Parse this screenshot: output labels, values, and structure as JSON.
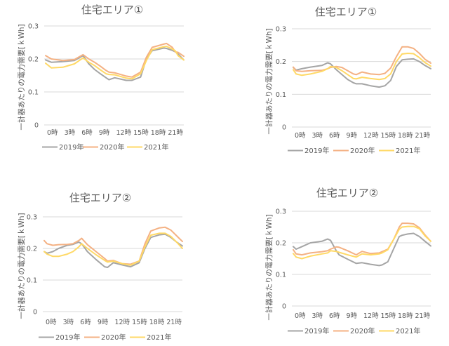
{
  "chart_data": [
    {
      "type": "line",
      "title": "住宅エリア①",
      "xlabel": "",
      "ylabel": "一計器あたりの電力需要[ｋWh]",
      "ylim": [
        0,
        0.3
      ],
      "yticks": [
        "0",
        "0.1",
        "0.2",
        "0.3"
      ],
      "xlim": [
        0,
        24
      ],
      "xticks": [
        "0時",
        "3時",
        "6時",
        "9時",
        "12時",
        "15時",
        "18時",
        "21時"
      ],
      "grid": true,
      "legend_position": "bottom",
      "x": [
        0,
        1,
        3,
        5,
        6.5,
        7.5,
        8.5,
        9.5,
        10.5,
        11,
        12,
        14,
        15,
        16.5,
        17.5,
        18.5,
        20.5,
        21,
        22,
        22.5,
        23,
        24
      ],
      "series": [
        {
          "name": "2019年",
          "color": "#a5a5a5",
          "values": [
            0.197,
            0.19,
            0.192,
            0.195,
            0.21,
            0.185,
            0.168,
            0.155,
            0.143,
            0.137,
            0.143,
            0.135,
            0.135,
            0.145,
            0.2,
            0.225,
            0.233,
            0.232,
            0.226,
            0.222,
            0.215,
            0.197
          ]
        },
        {
          "name": "2020年",
          "color": "#f4b183",
          "values": [
            0.21,
            0.2,
            0.195,
            0.198,
            0.213,
            0.2,
            0.19,
            0.178,
            0.165,
            0.16,
            0.158,
            0.148,
            0.145,
            0.16,
            0.205,
            0.235,
            0.245,
            0.247,
            0.235,
            0.222,
            0.22,
            0.208
          ]
        },
        {
          "name": "2021年",
          "color": "#ffd966",
          "values": [
            0.187,
            0.173,
            0.175,
            0.185,
            0.203,
            0.19,
            0.18,
            0.167,
            0.155,
            0.153,
            0.152,
            0.142,
            0.14,
            0.155,
            0.195,
            0.228,
            0.237,
            0.238,
            0.23,
            0.225,
            0.21,
            0.197
          ]
        }
      ]
    },
    {
      "type": "line",
      "title": "住宅エリア①",
      "xlabel": "",
      "ylabel": "一計器あたりの電力需要[ｋWh]",
      "ylim": [
        0,
        0.3
      ],
      "yticks": [
        "0",
        "0.1",
        "0.2",
        "0.3"
      ],
      "xlim": [
        0,
        24
      ],
      "xticks": [
        "0時",
        "3時",
        "6時",
        "9時",
        "12時",
        "15時",
        "18時",
        "21時"
      ],
      "grid": true,
      "legend_position": "bottom",
      "x": [
        0,
        0.5,
        1.5,
        3,
        5,
        6,
        6.5,
        7.5,
        8.5,
        9.5,
        10.5,
        11,
        12,
        13.5,
        15,
        16,
        17,
        18,
        19,
        20,
        21,
        22,
        23,
        24
      ],
      "series": [
        {
          "name": "2019年",
          "color": "#a5a5a5",
          "values": [
            0.182,
            0.174,
            0.178,
            0.183,
            0.188,
            0.196,
            0.193,
            0.175,
            0.16,
            0.145,
            0.135,
            0.132,
            0.132,
            0.126,
            0.122,
            0.126,
            0.142,
            0.185,
            0.205,
            0.207,
            0.208,
            0.2,
            0.188,
            0.178
          ]
        },
        {
          "name": "2020年",
          "color": "#f4b183",
          "values": [
            0.183,
            0.172,
            0.17,
            0.172,
            0.173,
            0.178,
            0.182,
            0.185,
            0.182,
            0.172,
            0.162,
            0.16,
            0.168,
            0.162,
            0.16,
            0.164,
            0.18,
            0.215,
            0.245,
            0.245,
            0.24,
            0.225,
            0.207,
            0.195
          ]
        },
        {
          "name": "2021年",
          "color": "#ffd966",
          "values": [
            0.175,
            0.162,
            0.158,
            0.162,
            0.17,
            0.178,
            0.185,
            0.182,
            0.172,
            0.16,
            0.148,
            0.147,
            0.152,
            0.148,
            0.145,
            0.148,
            0.162,
            0.2,
            0.223,
            0.225,
            0.224,
            0.212,
            0.197,
            0.186
          ]
        }
      ]
    },
    {
      "type": "line",
      "title": "住宅エリア②",
      "xlabel": "",
      "ylabel": "一計器あたりの電力需要[ｋWh]",
      "ylim": [
        0,
        0.3
      ],
      "yticks": [
        "0",
        "0.1",
        "0.2",
        "0.3"
      ],
      "xlim": [
        0,
        24
      ],
      "xticks": [
        "0時",
        "3時",
        "6時",
        "9時",
        "12時",
        "15時",
        "18時",
        "21時"
      ],
      "grid": true,
      "legend_position": "bottom",
      "x": [
        0,
        0.5,
        1.5,
        2.5,
        4,
        5,
        6,
        6.5,
        7.5,
        9,
        10.5,
        11,
        12,
        13.5,
        15,
        16.5,
        17.5,
        18.5,
        20,
        21,
        22,
        23,
        24
      ],
      "series": [
        {
          "name": "2019年",
          "color": "#a5a5a5",
          "values": [
            0.19,
            0.185,
            0.19,
            0.2,
            0.21,
            0.213,
            0.22,
            0.215,
            0.19,
            0.165,
            0.142,
            0.14,
            0.155,
            0.148,
            0.142,
            0.155,
            0.2,
            0.235,
            0.243,
            0.245,
            0.235,
            0.22,
            0.208
          ]
        },
        {
          "name": "2020年",
          "color": "#f4b183",
          "values": [
            0.225,
            0.215,
            0.21,
            0.212,
            0.213,
            0.215,
            0.225,
            0.232,
            0.212,
            0.19,
            0.168,
            0.16,
            0.162,
            0.152,
            0.15,
            0.16,
            0.215,
            0.255,
            0.265,
            0.267,
            0.258,
            0.24,
            0.222
          ]
        },
        {
          "name": "2021年",
          "color": "#ffd966",
          "values": [
            0.19,
            0.182,
            0.175,
            0.175,
            0.182,
            0.19,
            0.205,
            0.215,
            0.2,
            0.18,
            0.162,
            0.157,
            0.16,
            0.152,
            0.147,
            0.16,
            0.205,
            0.242,
            0.248,
            0.248,
            0.238,
            0.22,
            0.2
          ]
        }
      ]
    },
    {
      "type": "line",
      "title": "住宅エリア②",
      "xlabel": "",
      "ylabel": "一計器あたりの電力需要[ｋWh]",
      "ylim": [
        0,
        0.3
      ],
      "yticks": [
        "0",
        "0.1",
        "0.2",
        "0.3"
      ],
      "xlim": [
        0,
        24
      ],
      "xticks": [
        "0時",
        "3時",
        "6時",
        "9時",
        "12時",
        "15時",
        "18時",
        "21時"
      ],
      "grid": true,
      "legend_position": "bottom",
      "x": [
        0,
        0.5,
        1.5,
        3,
        5,
        6,
        6.5,
        7.5,
        8,
        9.5,
        11,
        12,
        13.5,
        15,
        15.5,
        16.5,
        17.5,
        18.5,
        19,
        20,
        21,
        22,
        23,
        24
      ],
      "series": [
        {
          "name": "2019年",
          "color": "#a5a5a5",
          "values": [
            0.188,
            0.18,
            0.188,
            0.2,
            0.205,
            0.212,
            0.208,
            0.175,
            0.162,
            0.148,
            0.135,
            0.137,
            0.132,
            0.128,
            0.13,
            0.14,
            0.18,
            0.22,
            0.224,
            0.228,
            0.23,
            0.22,
            0.205,
            0.19
          ]
        },
        {
          "name": "2020年",
          "color": "#f4b183",
          "values": [
            0.178,
            0.165,
            0.162,
            0.168,
            0.172,
            0.175,
            0.18,
            0.187,
            0.186,
            0.175,
            0.162,
            0.173,
            0.166,
            0.168,
            0.172,
            0.18,
            0.21,
            0.25,
            0.262,
            0.262,
            0.26,
            0.248,
            0.225,
            0.205
          ]
        },
        {
          "name": "2021年",
          "color": "#ffd966",
          "values": [
            0.166,
            0.155,
            0.15,
            0.158,
            0.165,
            0.168,
            0.175,
            0.173,
            0.17,
            0.162,
            0.155,
            0.165,
            0.162,
            0.165,
            0.168,
            0.178,
            0.21,
            0.243,
            0.25,
            0.252,
            0.252,
            0.245,
            0.222,
            0.205
          ]
        }
      ]
    }
  ]
}
